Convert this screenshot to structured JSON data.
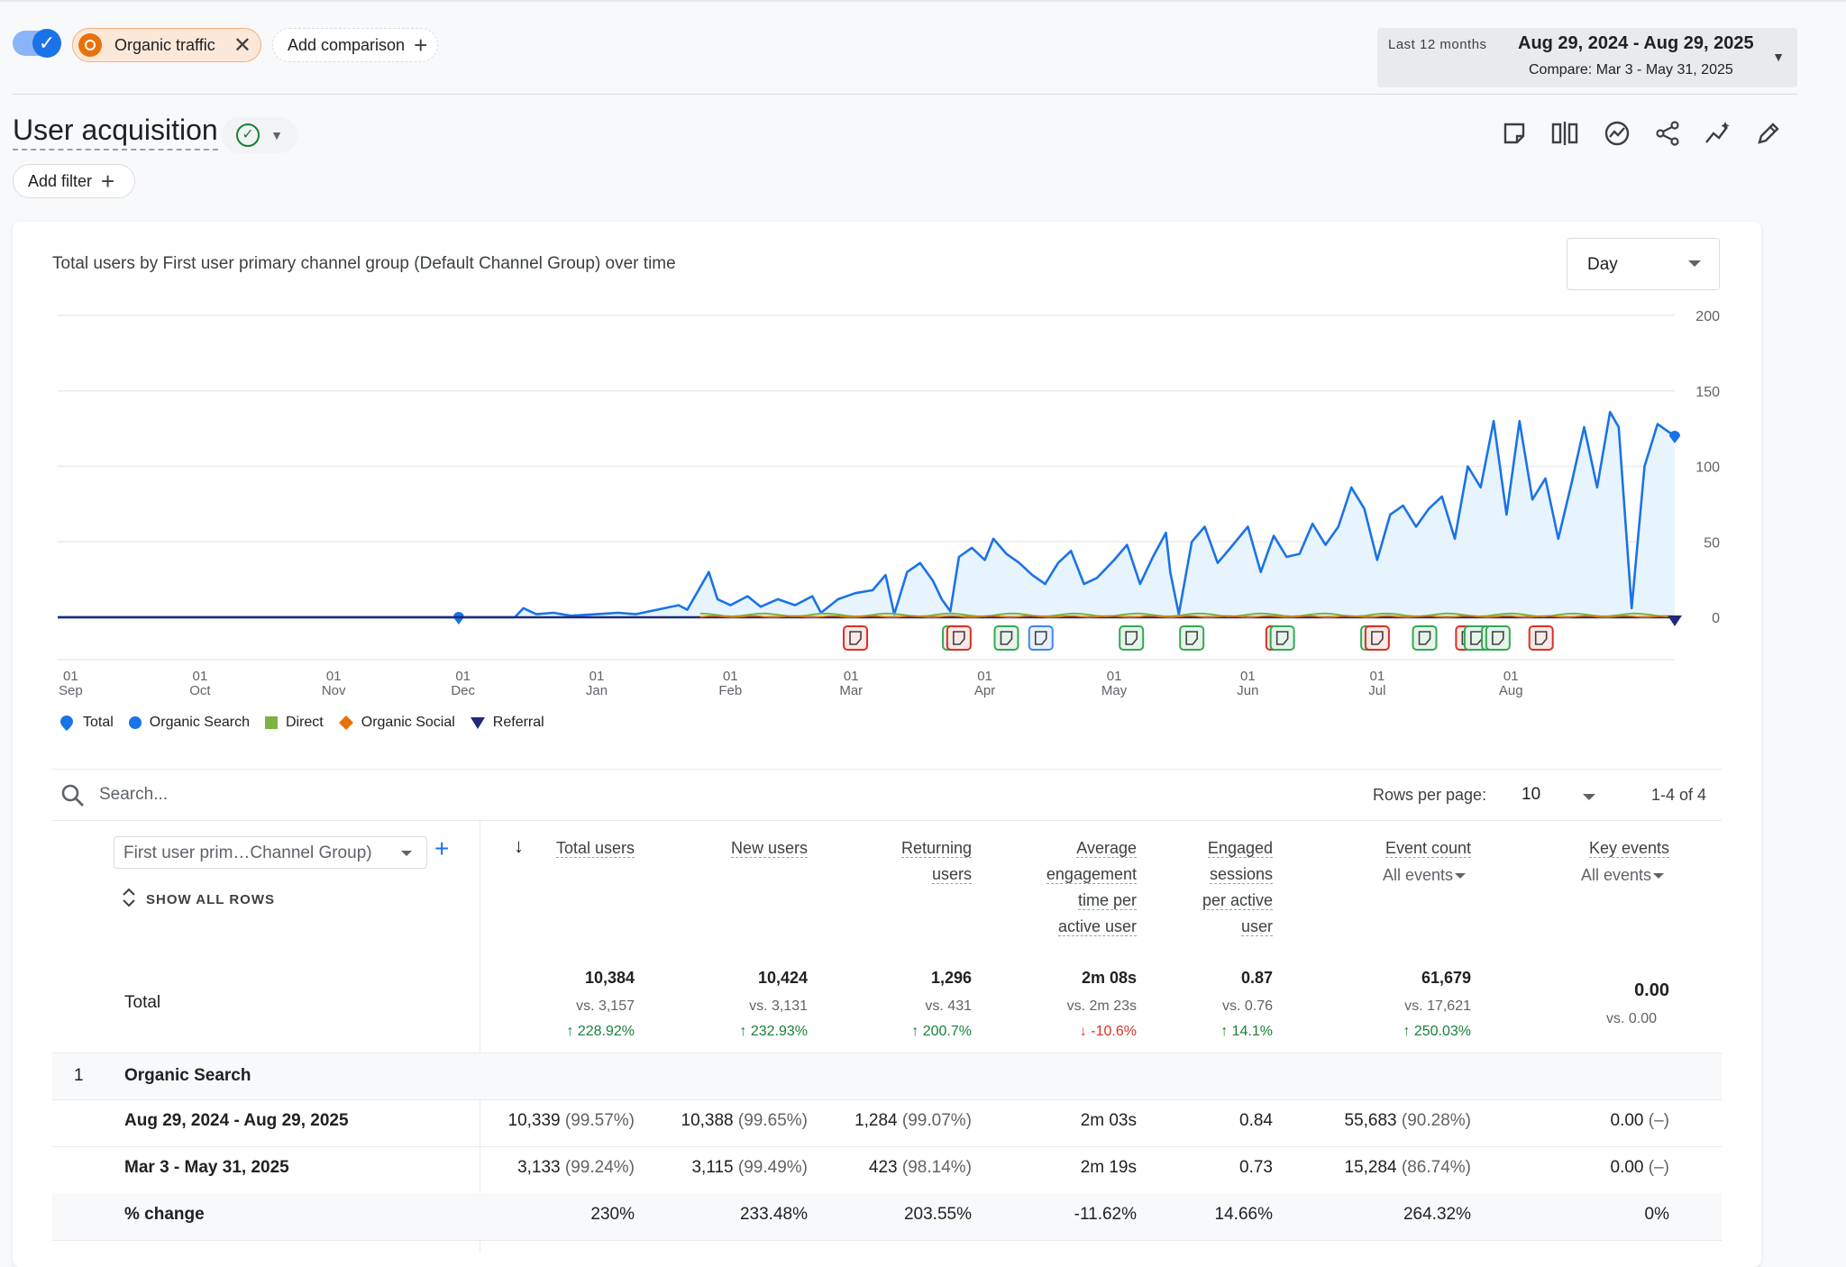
{
  "top": {
    "comparison_chip": "Organic traffic",
    "add_comparison": "Add comparison",
    "date_preset": "Last 12 months",
    "date_range": "Aug 29, 2024 - Aug 29, 2025",
    "compare_range": "Compare: Mar 3 - May 31, 2025"
  },
  "header": {
    "title": "User acquisition",
    "add_filter": "Add filter"
  },
  "chart": {
    "title": "Total users by First user primary channel group (Default Channel Group) over time",
    "granularity": "Day"
  },
  "chart_data": {
    "type": "area",
    "title": "Total users by First user primary channel group (Default Channel Group) over time",
    "ylim": [
      0,
      200
    ],
    "y_ticks": [
      "200",
      "150",
      "100",
      "50",
      "0"
    ],
    "x_ticks": [
      {
        "day": "01",
        "month": "Sep"
      },
      {
        "day": "01",
        "month": "Oct"
      },
      {
        "day": "01",
        "month": "Nov"
      },
      {
        "day": "01",
        "month": "Dec"
      },
      {
        "day": "01",
        "month": "Jan"
      },
      {
        "day": "01",
        "month": "Feb"
      },
      {
        "day": "01",
        "month": "Mar"
      },
      {
        "day": "01",
        "month": "Apr"
      },
      {
        "day": "01",
        "month": "May"
      },
      {
        "day": "01",
        "month": "Jun"
      },
      {
        "day": "01",
        "month": "Jul"
      },
      {
        "day": "01",
        "month": "Aug"
      }
    ],
    "series": [
      {
        "name": "Total",
        "color": "#1a73e8",
        "points": [
          [
            "2024-08-29",
            0
          ],
          [
            "2024-11-30",
            0
          ],
          [
            "2024-12-13",
            0
          ],
          [
            "2024-12-15",
            6
          ],
          [
            "2024-12-18",
            2
          ],
          [
            "2024-12-22",
            3
          ],
          [
            "2024-12-26",
            1
          ],
          [
            "2025-01-01",
            2
          ],
          [
            "2025-01-06",
            3
          ],
          [
            "2025-01-10",
            2
          ],
          [
            "2025-01-15",
            5
          ],
          [
            "2025-01-20",
            8
          ],
          [
            "2025-01-22",
            5
          ],
          [
            "2025-01-27",
            30
          ],
          [
            "2025-01-29",
            12
          ],
          [
            "2025-02-01",
            8
          ],
          [
            "2025-02-05",
            14
          ],
          [
            "2025-02-08",
            7
          ],
          [
            "2025-02-12",
            12
          ],
          [
            "2025-02-16",
            8
          ],
          [
            "2025-02-20",
            14
          ],
          [
            "2025-02-22",
            3
          ],
          [
            "2025-02-26",
            12
          ],
          [
            "2025-03-02",
            16
          ],
          [
            "2025-03-06",
            18
          ],
          [
            "2025-03-09",
            28
          ],
          [
            "2025-03-11",
            2
          ],
          [
            "2025-03-14",
            30
          ],
          [
            "2025-03-17",
            36
          ],
          [
            "2025-03-20",
            24
          ],
          [
            "2025-03-22",
            12
          ],
          [
            "2025-03-24",
            4
          ],
          [
            "2025-03-26",
            40
          ],
          [
            "2025-03-29",
            46
          ],
          [
            "2025-04-01",
            38
          ],
          [
            "2025-04-03",
            52
          ],
          [
            "2025-04-06",
            42
          ],
          [
            "2025-04-09",
            36
          ],
          [
            "2025-04-12",
            28
          ],
          [
            "2025-04-15",
            22
          ],
          [
            "2025-04-18",
            36
          ],
          [
            "2025-04-21",
            44
          ],
          [
            "2025-04-24",
            22
          ],
          [
            "2025-04-27",
            26
          ],
          [
            "2025-05-01",
            38
          ],
          [
            "2025-05-04",
            48
          ],
          [
            "2025-05-07",
            22
          ],
          [
            "2025-05-10",
            40
          ],
          [
            "2025-05-13",
            56
          ],
          [
            "2025-05-14",
            30
          ],
          [
            "2025-05-16",
            2
          ],
          [
            "2025-05-19",
            50
          ],
          [
            "2025-05-22",
            60
          ],
          [
            "2025-05-25",
            36
          ],
          [
            "2025-05-28",
            46
          ],
          [
            "2025-06-01",
            60
          ],
          [
            "2025-06-04",
            30
          ],
          [
            "2025-06-07",
            54
          ],
          [
            "2025-06-10",
            40
          ],
          [
            "2025-06-13",
            42
          ],
          [
            "2025-06-16",
            62
          ],
          [
            "2025-06-19",
            48
          ],
          [
            "2025-06-22",
            60
          ],
          [
            "2025-06-25",
            86
          ],
          [
            "2025-06-28",
            72
          ],
          [
            "2025-07-01",
            38
          ],
          [
            "2025-07-04",
            68
          ],
          [
            "2025-07-07",
            74
          ],
          [
            "2025-07-10",
            60
          ],
          [
            "2025-07-13",
            72
          ],
          [
            "2025-07-16",
            80
          ],
          [
            "2025-07-19",
            52
          ],
          [
            "2025-07-22",
            100
          ],
          [
            "2025-07-25",
            86
          ],
          [
            "2025-07-28",
            130
          ],
          [
            "2025-07-31",
            68
          ],
          [
            "2025-08-03",
            130
          ],
          [
            "2025-08-06",
            78
          ],
          [
            "2025-08-09",
            92
          ],
          [
            "2025-08-12",
            52
          ],
          [
            "2025-08-15",
            88
          ],
          [
            "2025-08-18",
            126
          ],
          [
            "2025-08-21",
            86
          ],
          [
            "2025-08-24",
            136
          ],
          [
            "2025-08-26",
            126
          ],
          [
            "2025-08-29",
            6
          ],
          [
            "2025-09-01",
            100
          ],
          [
            "2025-09-04",
            128
          ],
          [
            "2025-09-08",
            120
          ]
        ]
      },
      {
        "name": "Organic Search",
        "color": "#1a73e8"
      },
      {
        "name": "Direct",
        "color": "#7cb342"
      },
      {
        "name": "Organic Social",
        "color": "#e8710a"
      },
      {
        "name": "Referral",
        "color": "#1f2a7a"
      }
    ],
    "annotations": [
      {
        "date": "2025-03-02",
        "color": "red"
      },
      {
        "date": "2025-03-25",
        "color": "green"
      },
      {
        "date": "2025-03-26",
        "color": "red"
      },
      {
        "date": "2025-04-06",
        "color": "green"
      },
      {
        "date": "2025-04-14",
        "color": "blue"
      },
      {
        "date": "2025-05-05",
        "color": "green"
      },
      {
        "date": "2025-05-19",
        "color": "green"
      },
      {
        "date": "2025-06-08",
        "color": "red"
      },
      {
        "date": "2025-06-09",
        "color": "green"
      },
      {
        "date": "2025-06-30",
        "color": "green"
      },
      {
        "date": "2025-07-01",
        "color": "red"
      },
      {
        "date": "2025-07-12",
        "color": "green"
      },
      {
        "date": "2025-07-22",
        "color": "red"
      },
      {
        "date": "2025-07-24",
        "color": "green"
      },
      {
        "date": "2025-07-28",
        "color": "green"
      },
      {
        "date": "2025-07-29",
        "color": "green"
      },
      {
        "date": "2025-08-08",
        "color": "red"
      }
    ]
  },
  "legend": [
    "Total",
    "Organic Search",
    "Direct",
    "Organic Social",
    "Referral"
  ],
  "table": {
    "search_placeholder": "Search...",
    "rows_per_page_label": "Rows per page:",
    "rows_per_page": "10",
    "pager": "1-4 of 4",
    "dimension": "First user prim…Channel Group)",
    "show_all_rows": "SHOW ALL ROWS",
    "columns": [
      {
        "lines": [
          "Total users"
        ],
        "sort": true
      },
      {
        "lines": [
          "New users"
        ]
      },
      {
        "lines": [
          "Returning",
          "users"
        ]
      },
      {
        "lines": [
          "Average",
          "engagement",
          "time per",
          "active user"
        ]
      },
      {
        "lines": [
          "Engaged",
          "sessions",
          "per active",
          "user"
        ]
      },
      {
        "lines": [
          "Event count"
        ],
        "sub": "All events"
      },
      {
        "lines": [
          "Key events"
        ],
        "sub": "All events"
      }
    ],
    "total_label": "Total",
    "totals": [
      {
        "value": "10,384",
        "vs": "vs. 3,157",
        "change": "228.92%",
        "dir": "up"
      },
      {
        "value": "10,424",
        "vs": "vs. 3,131",
        "change": "232.93%",
        "dir": "up"
      },
      {
        "value": "1,296",
        "vs": "vs. 431",
        "change": "200.7%",
        "dir": "up"
      },
      {
        "value": "2m 08s",
        "vs": "vs. 2m 23s",
        "change": "-10.6%",
        "dir": "down"
      },
      {
        "value": "0.87",
        "vs": "vs. 0.76",
        "change": "14.1%",
        "dir": "up"
      },
      {
        "value": "61,679",
        "vs": "vs. 17,621",
        "change": "250.03%",
        "dir": "up"
      },
      {
        "value": "0.00",
        "vs": "vs. 0.00",
        "change": "",
        "dir": "none"
      }
    ],
    "group": {
      "index": "1",
      "name": "Organic Search"
    },
    "rows": [
      {
        "label": "Aug 29, 2024 - Aug 29, 2025",
        "cells": [
          [
            "10,339",
            "(99.57%)"
          ],
          [
            "10,388",
            "(99.65%)"
          ],
          [
            "1,284",
            "(99.07%)"
          ],
          [
            "2m 03s",
            ""
          ],
          [
            "0.84",
            ""
          ],
          [
            "55,683",
            "(90.28%)"
          ],
          [
            "0.00",
            "(–)"
          ]
        ]
      },
      {
        "label": "Mar 3 - May 31, 2025",
        "cells": [
          [
            "3,133",
            "(99.24%)"
          ],
          [
            "3,115",
            "(99.49%)"
          ],
          [
            "423",
            "(98.14%)"
          ],
          [
            "2m 19s",
            ""
          ],
          [
            "0.73",
            ""
          ],
          [
            "15,284",
            "(86.74%)"
          ],
          [
            "0.00",
            "(–)"
          ]
        ]
      },
      {
        "label": "% change",
        "cells": [
          [
            "230%",
            ""
          ],
          [
            "233.48%",
            ""
          ],
          [
            "203.55%",
            ""
          ],
          [
            "-11.62%",
            ""
          ],
          [
            "14.66%",
            ""
          ],
          [
            "264.32%",
            ""
          ],
          [
            "0%",
            ""
          ]
        ]
      }
    ]
  }
}
